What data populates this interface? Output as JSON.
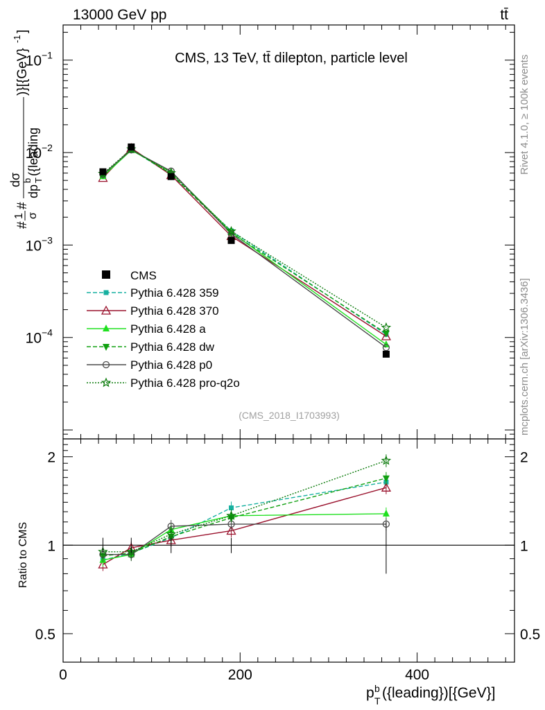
{
  "header": {
    "left": "13000 GeV pp",
    "right": "tt̄"
  },
  "side_text": {
    "rivet": "Rivet 4.1.0, ≥ 100k events",
    "url": "mcplots.cern.ch [arXiv:1306.3436]"
  },
  "chart_data": {
    "type": "line",
    "title": "CMS, 13 TeV, tt̄ dilepton, particle level",
    "analysis_id": "(CMS_2018_I1703993)",
    "xlabel": "p_T^b({leading})[{GeV}]",
    "ylabel": "#1/σ# dσ/dp_T^b({leading})[{GeV}^-1]",
    "ratio_ylabel": "Ratio to CMS",
    "xlim": [
      0,
      510
    ],
    "ylim": [
      8e-06,
      0.24
    ],
    "ratio_ylim": [
      0.4,
      2.3
    ],
    "x_ticks": [
      {
        "v": 0,
        "label": "0"
      },
      {
        "v": 200,
        "label": "200"
      },
      {
        "v": 400,
        "label": "400"
      }
    ],
    "y_ticks": [
      {
        "v": 0.0001,
        "base": "10",
        "exp": "−4"
      },
      {
        "v": 0.001,
        "base": "10",
        "exp": "−3"
      },
      {
        "v": 0.01,
        "base": "10",
        "exp": "−2"
      },
      {
        "v": 0.1,
        "base": "10",
        "exp": "−1"
      }
    ],
    "ratio_ticks": [
      {
        "v": 0.5,
        "label": "0.5"
      },
      {
        "v": 1,
        "label": "1"
      },
      {
        "v": 2,
        "label": "2"
      }
    ],
    "x": [
      45,
      77,
      122,
      190,
      365
    ],
    "data": {
      "name": "CMS",
      "values": [
        0.0062,
        0.0115,
        0.0055,
        0.00112,
        6.6e-05
      ],
      "errors": [
        0.0003,
        0.0004,
        0.0002,
        6e-05,
        4e-06
      ]
    },
    "series": [
      {
        "name": "Pythia 6.428 359",
        "color": "#17b0a0",
        "dash": "6,3",
        "marker": "square",
        "values": [
          0.00555,
          0.0108,
          0.0058,
          0.00142,
          0.000108
        ],
        "ratio": [
          0.89,
          0.94,
          1.06,
          1.34,
          1.64
        ]
      },
      {
        "name": "Pythia 6.428 370",
        "color": "#99102b",
        "dash": "",
        "marker": "triangle-open",
        "values": [
          0.00532,
          0.0112,
          0.0057,
          0.00125,
          0.000103
        ],
        "ratio": [
          0.86,
          0.98,
          1.04,
          1.12,
          1.57
        ]
      },
      {
        "name": "Pythia 6.428 a",
        "color": "#1fe01f",
        "dash": "",
        "marker": "triangle",
        "values": [
          0.00553,
          0.0106,
          0.0062,
          0.00138,
          8.4e-05
        ],
        "ratio": [
          0.89,
          0.93,
          1.13,
          1.26,
          1.28
        ]
      },
      {
        "name": "Pythia 6.428 dw",
        "color": "#10a010",
        "dash": "6,3",
        "marker": "triangle-down",
        "values": [
          0.0057,
          0.0108,
          0.0059,
          0.00135,
          0.000111
        ],
        "ratio": [
          0.92,
          0.94,
          1.07,
          1.24,
          1.69
        ]
      },
      {
        "name": "Pythia 6.428 p0",
        "color": "#4a4a4a",
        "dash": "",
        "marker": "circle-open",
        "values": [
          0.0058,
          0.0107,
          0.0063,
          0.00132,
          7.8e-05
        ],
        "ratio": [
          0.93,
          0.93,
          1.16,
          1.18,
          1.18
        ]
      },
      {
        "name": "Pythia 6.428 pro-q2o",
        "color": "#0a7a0a",
        "dash": "2,2",
        "marker": "star",
        "values": [
          0.0059,
          0.0109,
          0.006,
          0.00141,
          0.000128
        ],
        "ratio": [
          0.95,
          0.95,
          1.09,
          1.26,
          1.94
        ]
      }
    ]
  }
}
